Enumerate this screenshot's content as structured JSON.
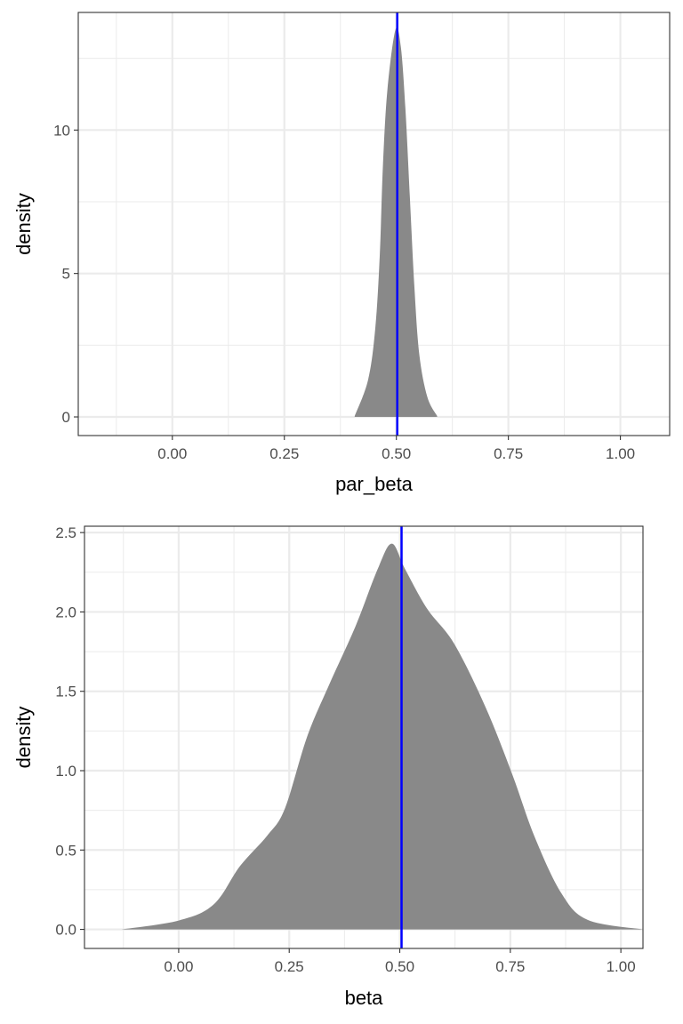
{
  "chart_data": [
    {
      "type": "area",
      "title": "",
      "xlabel": "par_beta",
      "ylabel": "density",
      "xlim": [
        -0.21,
        1.11
      ],
      "ylim": [
        -0.65,
        14.1
      ],
      "xticks": [
        0,
        0.25,
        0.5,
        0.75,
        1
      ],
      "xtick_labels": [
        "0.00",
        "0.25",
        "0.50",
        "0.75",
        "1.00"
      ],
      "yticks": [
        0,
        5,
        10
      ],
      "ytick_labels": [
        "0",
        "5",
        "10"
      ],
      "grid": true,
      "fill_color": "#898989",
      "vline": {
        "x": 0.502,
        "color": "#0000ff"
      },
      "x": [
        0.407,
        0.437,
        0.453,
        0.463,
        0.47,
        0.48,
        0.498,
        0.51,
        0.52,
        0.53,
        0.54,
        0.551,
        0.569,
        0.591
      ],
      "y": [
        0.03,
        1.3,
        3.1,
        5.65,
        8.76,
        11.4,
        13.5,
        12.9,
        10.8,
        7.7,
        4.6,
        2.2,
        0.7,
        0.03
      ]
    },
    {
      "type": "area",
      "title": "",
      "xlabel": "beta",
      "ylabel": "density",
      "xlim": [
        -0.213,
        1.05
      ],
      "ylim": [
        -0.12,
        2.54
      ],
      "xticks": [
        0,
        0.25,
        0.5,
        0.75,
        1
      ],
      "xtick_labels": [
        "0.00",
        "0.25",
        "0.50",
        "0.75",
        "1.00"
      ],
      "yticks": [
        0,
        0.5,
        1,
        1.5,
        2,
        2.5
      ],
      "ytick_labels": [
        "0.0",
        "0.5",
        "1.0",
        "1.5",
        "2.0",
        "2.5"
      ],
      "grid": true,
      "fill_color": "#898989",
      "vline": {
        "x": 0.504,
        "color": "#0000ff"
      },
      "x": [
        -0.129,
        0.0,
        0.079,
        0.139,
        0.2,
        0.24,
        0.29,
        0.34,
        0.4,
        0.45,
        0.482,
        0.512,
        0.562,
        0.623,
        0.694,
        0.754,
        0.804,
        0.865,
        0.925,
        1.05
      ],
      "y": [
        0,
        0.056,
        0.157,
        0.4,
        0.59,
        0.76,
        1.21,
        1.54,
        1.91,
        2.27,
        2.43,
        2.27,
        2.02,
        1.8,
        1.4,
        0.98,
        0.59,
        0.23,
        0.06,
        0
      ]
    }
  ]
}
